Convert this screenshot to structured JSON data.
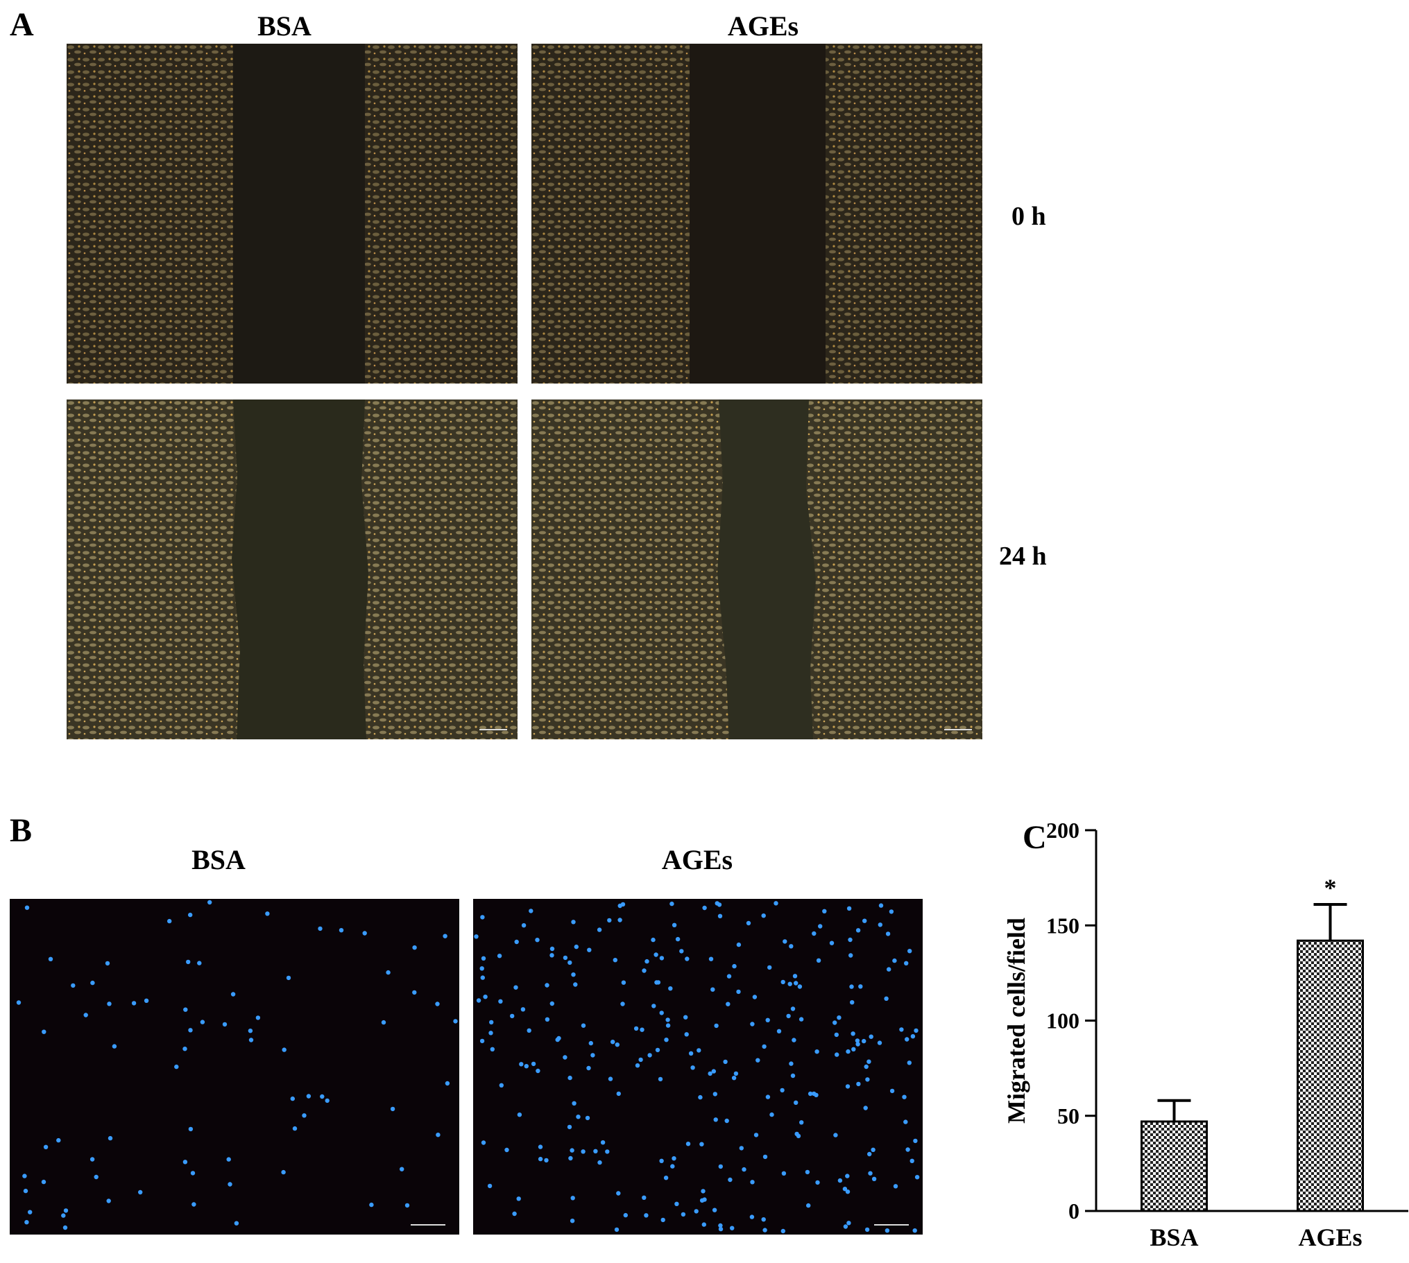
{
  "figure": {
    "panel_a": {
      "letter": "A",
      "columns": [
        "BSA",
        "AGEs"
      ],
      "rows": [
        "0 h",
        "24 h"
      ]
    },
    "panel_b": {
      "letter": "B",
      "columns": [
        "BSA",
        "AGEs"
      ]
    },
    "panel_c": {
      "letter": "C"
    }
  },
  "colors": {
    "phase_background": "#2a2418",
    "phase_cells": "#8f7d4e",
    "wound_dark": "#1d1a14",
    "fluoro_background": "#0a0408",
    "nucleus": "#3a9cff"
  },
  "chart_data": {
    "type": "bar",
    "categories": [
      "BSA",
      "AGEs"
    ],
    "values": [
      47,
      142
    ],
    "errors": [
      11,
      19
    ],
    "significance": [
      "",
      "*"
    ],
    "ylabel": "Migrated cells/field",
    "ylim": [
      0,
      200
    ],
    "yticks": [
      0,
      50,
      100,
      150,
      200
    ],
    "bar_fill": "checkered"
  }
}
